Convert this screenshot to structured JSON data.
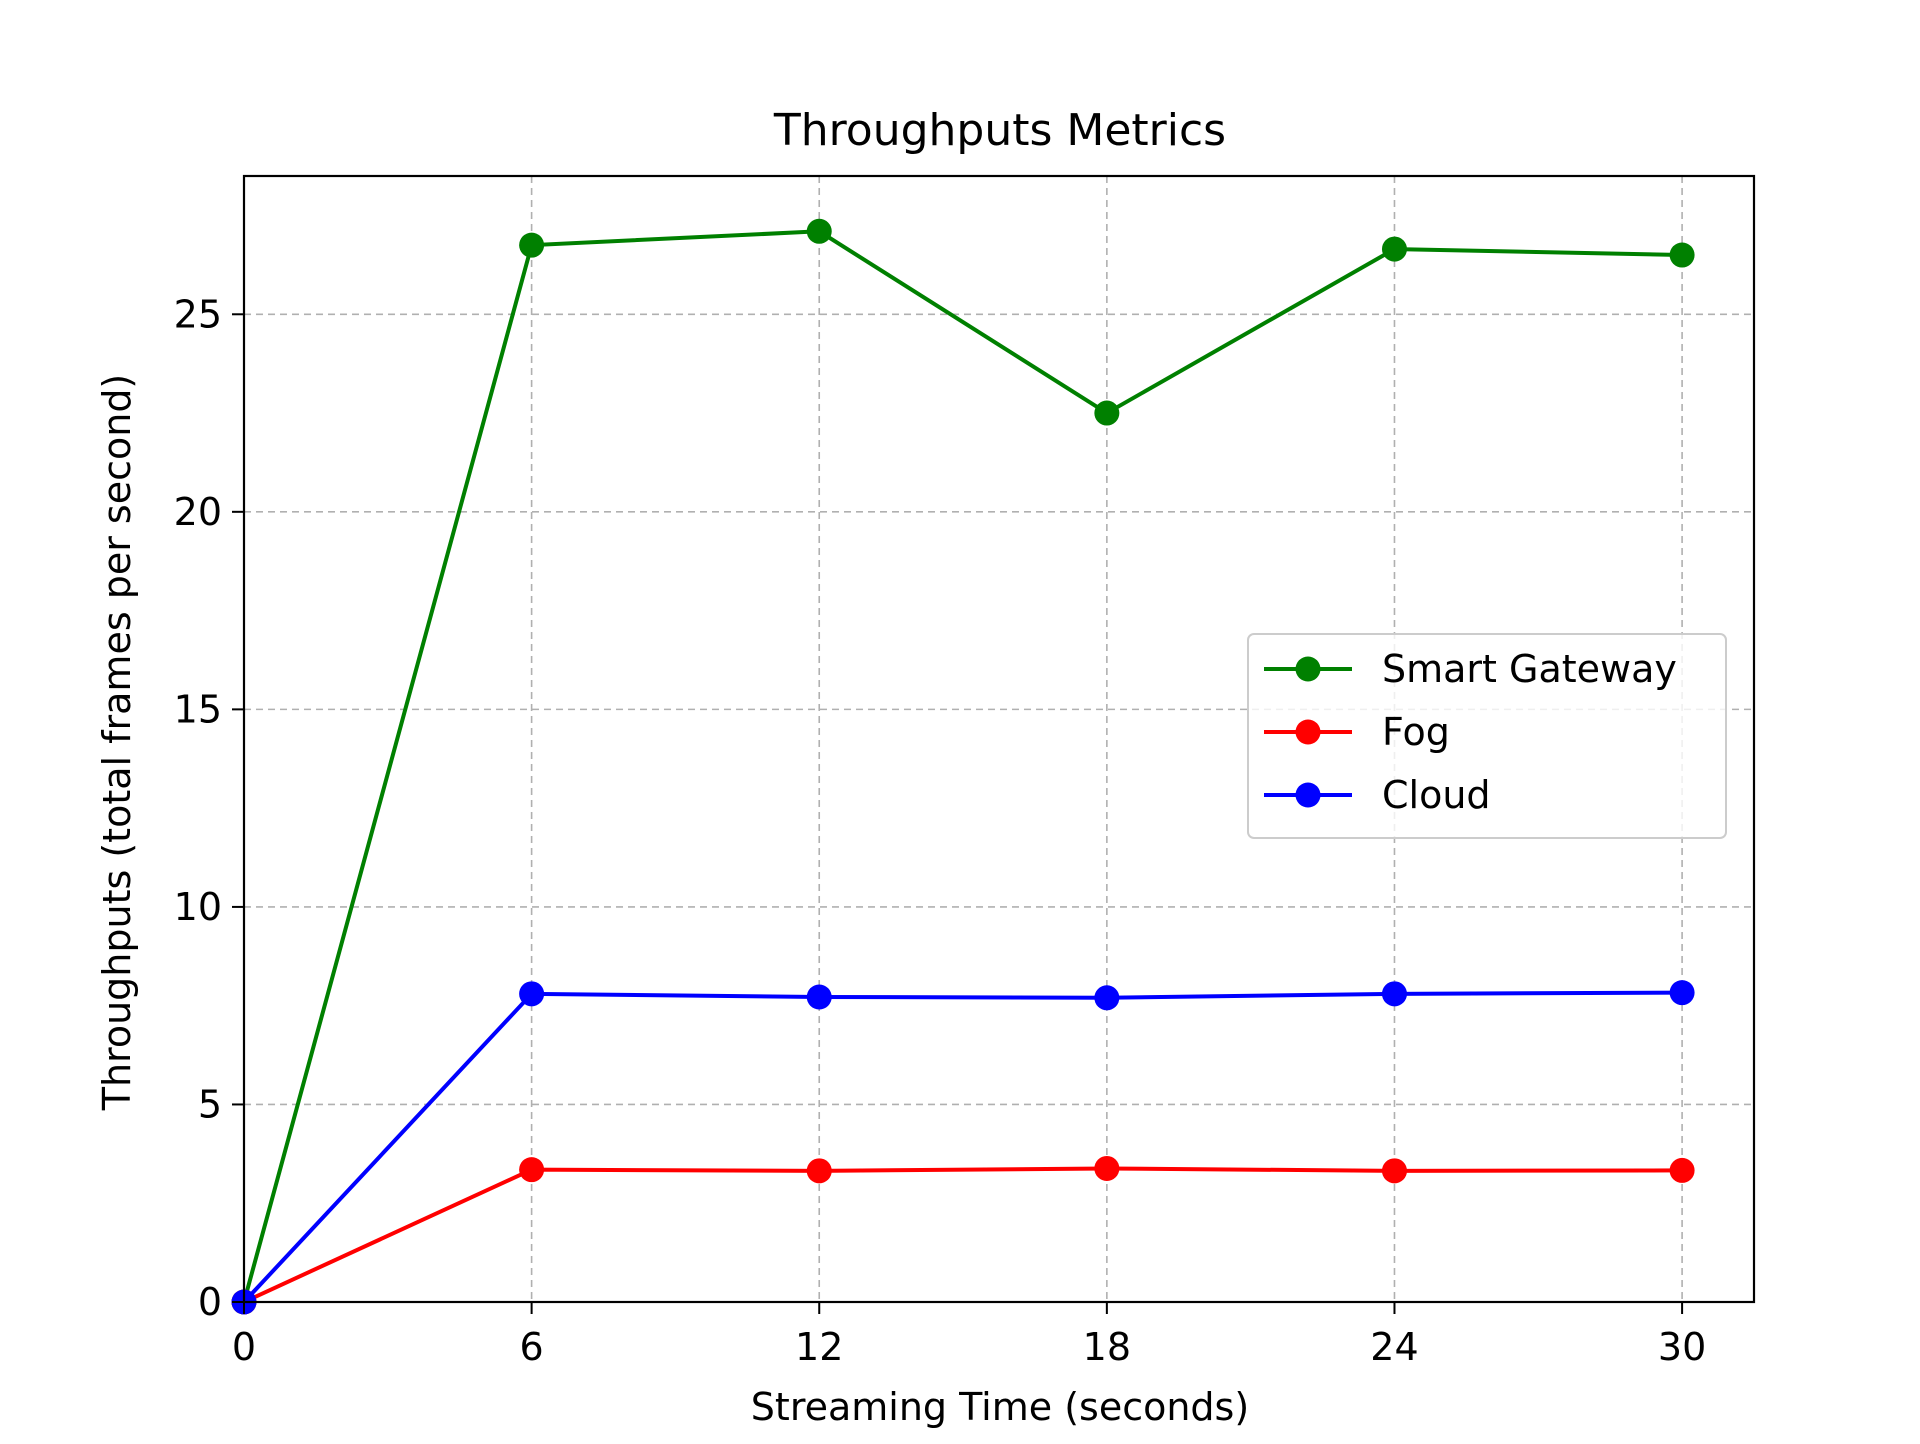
{
  "chart_data": {
    "type": "line",
    "title": "Throughputs Metrics",
    "xlabel": "Streaming Time (seconds)",
    "ylabel": "Throughputs (total frames per second)",
    "x": [
      0,
      6,
      12,
      18,
      24,
      30
    ],
    "xlim": [
      0,
      31.5
    ],
    "ylim": [
      0,
      28.5
    ],
    "xticks": [
      0,
      6,
      12,
      18,
      24,
      30
    ],
    "yticks": [
      0,
      5,
      10,
      15,
      20,
      25
    ],
    "grid": true,
    "legend_position": "center-right",
    "series": [
      {
        "name": "Smart Gateway",
        "color": "#008000",
        "values": [
          0,
          26.75,
          27.1,
          22.5,
          26.65,
          26.5
        ]
      },
      {
        "name": "Fog",
        "color": "#ff0000",
        "values": [
          0,
          3.35,
          3.32,
          3.38,
          3.32,
          3.33
        ]
      },
      {
        "name": "Cloud",
        "color": "#0000ff",
        "values": [
          0,
          7.8,
          7.72,
          7.7,
          7.8,
          7.83
        ]
      }
    ]
  }
}
